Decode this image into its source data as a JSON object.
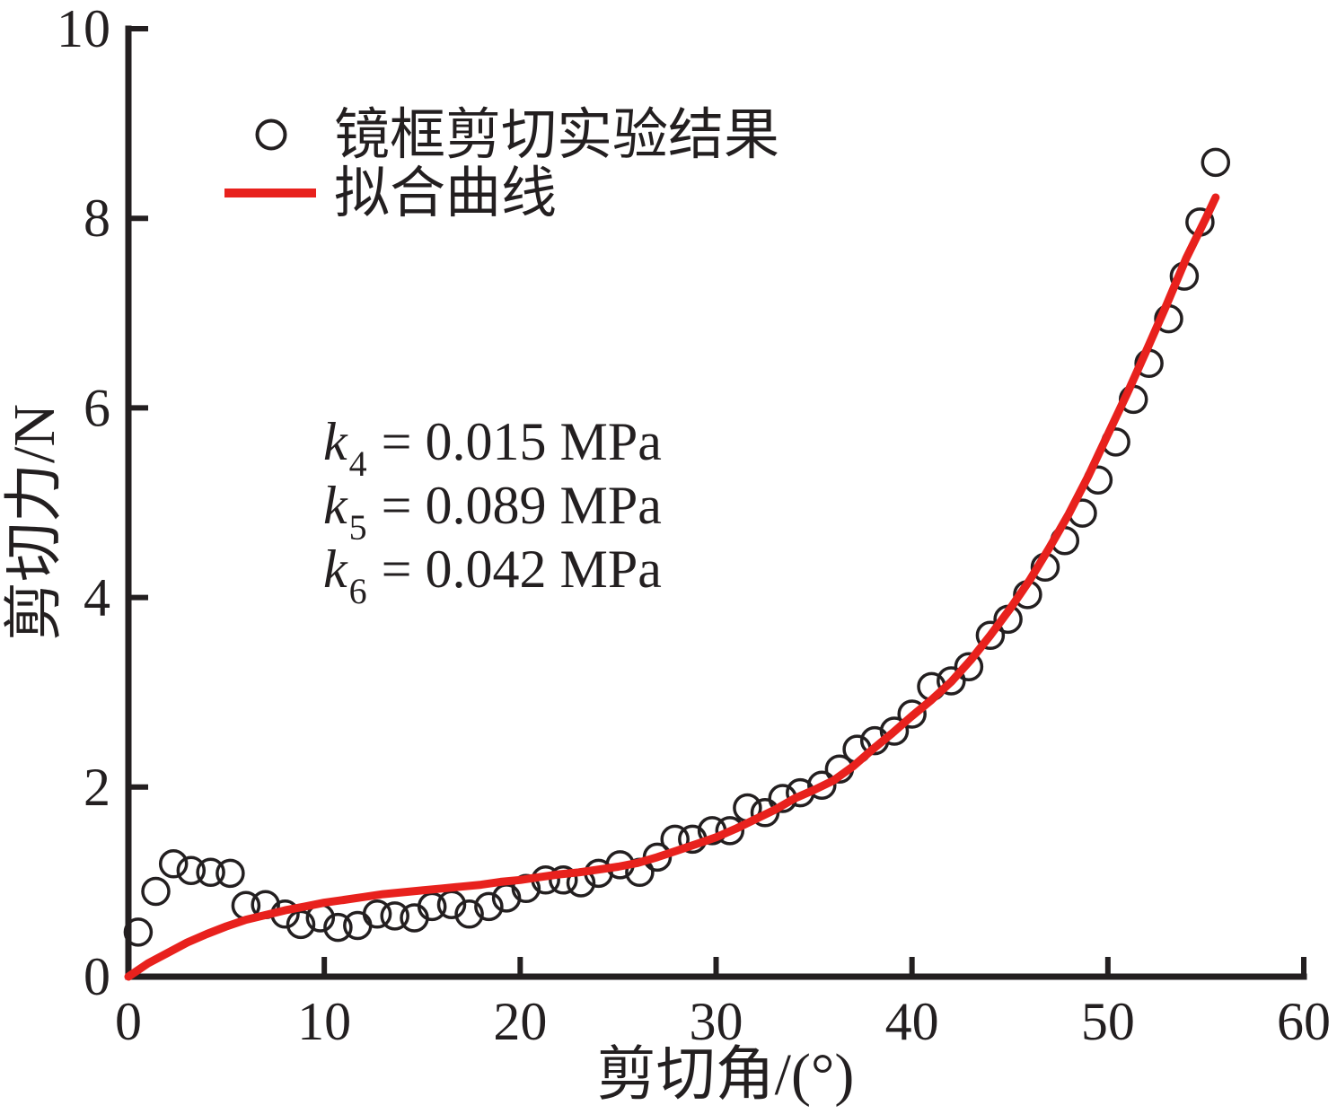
{
  "figure": {
    "background": "#ffffff",
    "axis_color": "#231f20",
    "text_color": "#231f20"
  },
  "chart_data": {
    "type": "scatter",
    "title": "",
    "xlabel": "剪切角/(°)",
    "ylabel": "剪切力/N",
    "xlim": [
      0,
      60
    ],
    "ylim": [
      0,
      10
    ],
    "x_ticks": [
      0,
      10,
      20,
      30,
      40,
      50,
      60
    ],
    "y_ticks": [
      0,
      2,
      4,
      6,
      8,
      10
    ],
    "grid": false,
    "legend_position": "upper-left-inside",
    "series": [
      {
        "name": "镜框剪切实验结果",
        "type": "scatter",
        "marker": "open-circle",
        "color": "#231f20",
        "points": [
          [
            0.5,
            0.47
          ],
          [
            1.4,
            0.9
          ],
          [
            2.3,
            1.19
          ],
          [
            3.2,
            1.12
          ],
          [
            4.2,
            1.1
          ],
          [
            5.2,
            1.09
          ],
          [
            6.0,
            0.75
          ],
          [
            7.0,
            0.76
          ],
          [
            8.0,
            0.66
          ],
          [
            8.8,
            0.55
          ],
          [
            9.8,
            0.62
          ],
          [
            10.7,
            0.52
          ],
          [
            11.7,
            0.54
          ],
          [
            12.7,
            0.66
          ],
          [
            13.6,
            0.64
          ],
          [
            14.6,
            0.62
          ],
          [
            15.5,
            0.74
          ],
          [
            16.5,
            0.76
          ],
          [
            17.4,
            0.66
          ],
          [
            18.4,
            0.74
          ],
          [
            19.3,
            0.83
          ],
          [
            20.3,
            0.93
          ],
          [
            21.3,
            1.02
          ],
          [
            22.2,
            1.02
          ],
          [
            23.1,
            0.99
          ],
          [
            24.0,
            1.09
          ],
          [
            25.1,
            1.18
          ],
          [
            26.1,
            1.1
          ],
          [
            27.0,
            1.26
          ],
          [
            27.9,
            1.45
          ],
          [
            28.8,
            1.45
          ],
          [
            29.8,
            1.54
          ],
          [
            30.7,
            1.54
          ],
          [
            31.6,
            1.78
          ],
          [
            32.5,
            1.73
          ],
          [
            33.4,
            1.88
          ],
          [
            34.3,
            1.94
          ],
          [
            35.4,
            2.02
          ],
          [
            36.3,
            2.19
          ],
          [
            37.2,
            2.4
          ],
          [
            38.1,
            2.49
          ],
          [
            39.1,
            2.59
          ],
          [
            40.0,
            2.77
          ],
          [
            41.0,
            3.06
          ],
          [
            42.0,
            3.12
          ],
          [
            42.9,
            3.27
          ],
          [
            44.0,
            3.6
          ],
          [
            44.9,
            3.77
          ],
          [
            45.9,
            4.03
          ],
          [
            46.8,
            4.32
          ],
          [
            47.8,
            4.6
          ],
          [
            48.7,
            4.89
          ],
          [
            49.5,
            5.24
          ],
          [
            50.4,
            5.64
          ],
          [
            51.3,
            6.09
          ],
          [
            52.1,
            6.47
          ],
          [
            53.1,
            6.94
          ],
          [
            53.9,
            7.39
          ],
          [
            54.7,
            7.96
          ],
          [
            55.5,
            8.59
          ]
        ]
      },
      {
        "name": "拟合曲线",
        "type": "line",
        "color": "#e8211d",
        "points": [
          [
            0,
            0.0
          ],
          [
            1,
            0.14
          ],
          [
            2,
            0.25
          ],
          [
            3,
            0.36
          ],
          [
            4,
            0.45
          ],
          [
            5,
            0.53
          ],
          [
            6,
            0.6
          ],
          [
            7,
            0.65
          ],
          [
            8,
            0.7
          ],
          [
            9,
            0.74
          ],
          [
            10,
            0.78
          ],
          [
            11,
            0.81
          ],
          [
            12,
            0.84
          ],
          [
            13,
            0.87
          ],
          [
            14,
            0.89
          ],
          [
            15,
            0.91
          ],
          [
            16,
            0.93
          ],
          [
            17,
            0.95
          ],
          [
            18,
            0.97
          ],
          [
            19,
            1.0
          ],
          [
            20,
            1.02
          ],
          [
            21,
            1.05
          ],
          [
            22,
            1.08
          ],
          [
            23,
            1.1
          ],
          [
            24,
            1.13
          ],
          [
            25,
            1.16
          ],
          [
            26,
            1.2
          ],
          [
            27,
            1.26
          ],
          [
            28,
            1.33
          ],
          [
            29,
            1.4
          ],
          [
            30,
            1.47
          ],
          [
            31,
            1.56
          ],
          [
            32,
            1.66
          ],
          [
            33,
            1.76
          ],
          [
            34,
            1.88
          ],
          [
            35,
            1.97
          ],
          [
            36,
            2.07
          ],
          [
            37,
            2.22
          ],
          [
            38,
            2.4
          ],
          [
            39,
            2.57
          ],
          [
            40,
            2.75
          ],
          [
            41,
            2.92
          ],
          [
            42,
            3.11
          ],
          [
            43,
            3.34
          ],
          [
            44,
            3.6
          ],
          [
            45,
            3.88
          ],
          [
            46,
            4.18
          ],
          [
            47,
            4.52
          ],
          [
            48,
            4.88
          ],
          [
            49,
            5.28
          ],
          [
            50,
            5.72
          ],
          [
            51,
            6.16
          ],
          [
            52,
            6.62
          ],
          [
            53,
            7.09
          ],
          [
            54,
            7.58
          ],
          [
            55,
            8.0
          ],
          [
            55.5,
            8.22
          ]
        ]
      }
    ],
    "annotations": [
      {
        "symbol": "k",
        "sub": "4",
        "text": "= 0.015 MPa"
      },
      {
        "symbol": "k",
        "sub": "5",
        "text": "= 0.089 MPa"
      },
      {
        "symbol": "k",
        "sub": "6",
        "text": "= 0.042 MPa"
      }
    ]
  }
}
